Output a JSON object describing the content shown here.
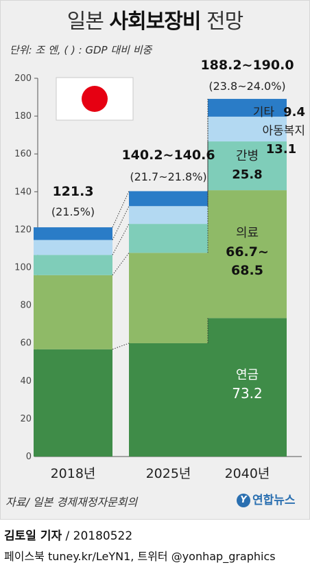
{
  "header": {
    "title_prefix": "일본",
    "title_bold": "사회보장비",
    "title_suffix": "전망",
    "unit_note": "단위: 조 엔, ( ) : GDP 대비 비중"
  },
  "chart_data": {
    "type": "bar",
    "stacked": true,
    "categories": [
      "2018년",
      "2025년",
      "2040년"
    ],
    "ylim": [
      0,
      200
    ],
    "yticks": [
      0,
      20,
      40,
      60,
      80,
      100,
      120,
      140,
      160,
      180,
      200
    ],
    "grid": false,
    "series": [
      {
        "name": "연금",
        "color": "#3f8c48",
        "values": [
          56.7,
          59.9,
          73.2
        ]
      },
      {
        "name": "의료",
        "color": "#8fba67",
        "values": [
          39.2,
          47.8,
          67.6
        ]
      },
      {
        "name": "간병",
        "color": "#7fcdb9",
        "values": [
          10.7,
          15.3,
          25.8
        ]
      },
      {
        "name": "아동복지",
        "color": "#b3d9f2",
        "values": [
          7.9,
          9.4,
          13.1
        ]
      },
      {
        "name": "기타",
        "color": "#2a7cc7",
        "values": [
          6.7,
          7.9,
          9.4
        ]
      }
    ],
    "totals": [
      {
        "value": "121.3",
        "share": "(21.5%)"
      },
      {
        "value": "140.2~140.6",
        "share": "(21.7~21.8%)"
      },
      {
        "value": "188.2~190.0",
        "share": "(23.8~24.0%)"
      }
    ],
    "labels_2040": {
      "pension_name": "연금",
      "pension_value": "73.2",
      "medical_name": "의료",
      "medical_value_1": "66.7~",
      "medical_value_2": "68.5",
      "care_name": "간병",
      "care_value": "25.8",
      "child_name": "아동복지",
      "child_value": "13.1",
      "other_name": "기타",
      "other_value": "9.4"
    }
  },
  "footer": {
    "source": "자료/ 일본 경제재정자문회의",
    "logo_text": "연합뉴스",
    "byline_name": "김토일 기자",
    "byline_rest": " / 20180522",
    "social": "페이스북 tuney.kr/LeYN1, 트위터 @yonhap_graphics"
  },
  "colors": {
    "flag_red": "#e60012",
    "axis": "#555555"
  }
}
